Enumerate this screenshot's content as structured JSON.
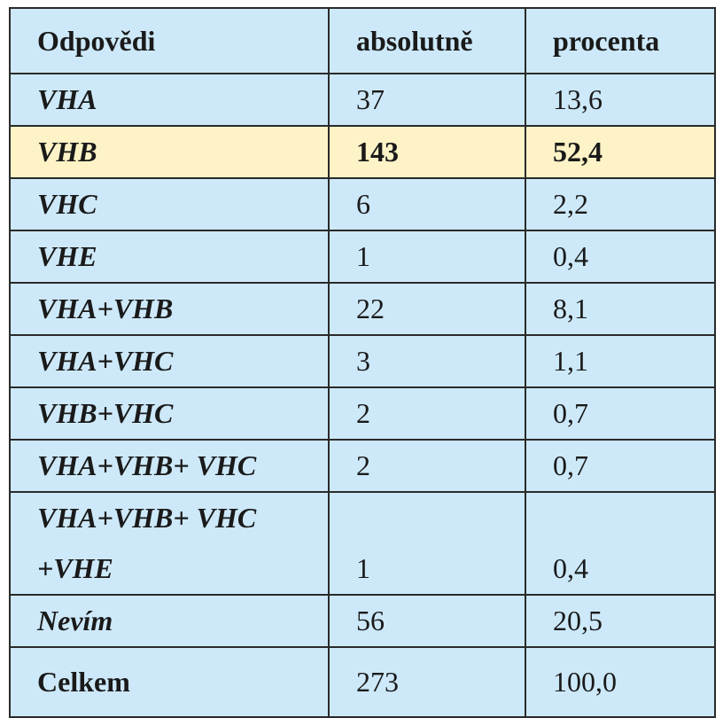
{
  "table": {
    "header": [
      "Odpovědi",
      "absolutně",
      "procenta"
    ],
    "rows": [
      {
        "cells": [
          "VHA",
          "37",
          "13,6"
        ]
      },
      {
        "cells": [
          "VHB",
          "143",
          "52,4"
        ],
        "highlight": true
      },
      {
        "cells": [
          "VHC",
          "6",
          "2,2"
        ]
      },
      {
        "cells": [
          "VHE",
          "1",
          "0,4"
        ]
      },
      {
        "cells": [
          "VHA+VHB",
          "22",
          "8,1"
        ]
      },
      {
        "cells": [
          "VHA+VHC",
          "3",
          "1,1"
        ]
      },
      {
        "cells": [
          "VHB+VHC",
          "2",
          "0,7"
        ]
      },
      {
        "cells": [
          "VHA+VHB+ VHC",
          "2",
          "0,7"
        ]
      },
      {
        "cells": [
          "VHA+VHB+ VHC\n+VHE",
          "1",
          "0,4"
        ]
      },
      {
        "cells": [
          "Nevím",
          "56",
          "20,5"
        ]
      },
      {
        "cells": [
          "Celkem",
          "273",
          "100,0"
        ],
        "total": true
      }
    ]
  }
}
